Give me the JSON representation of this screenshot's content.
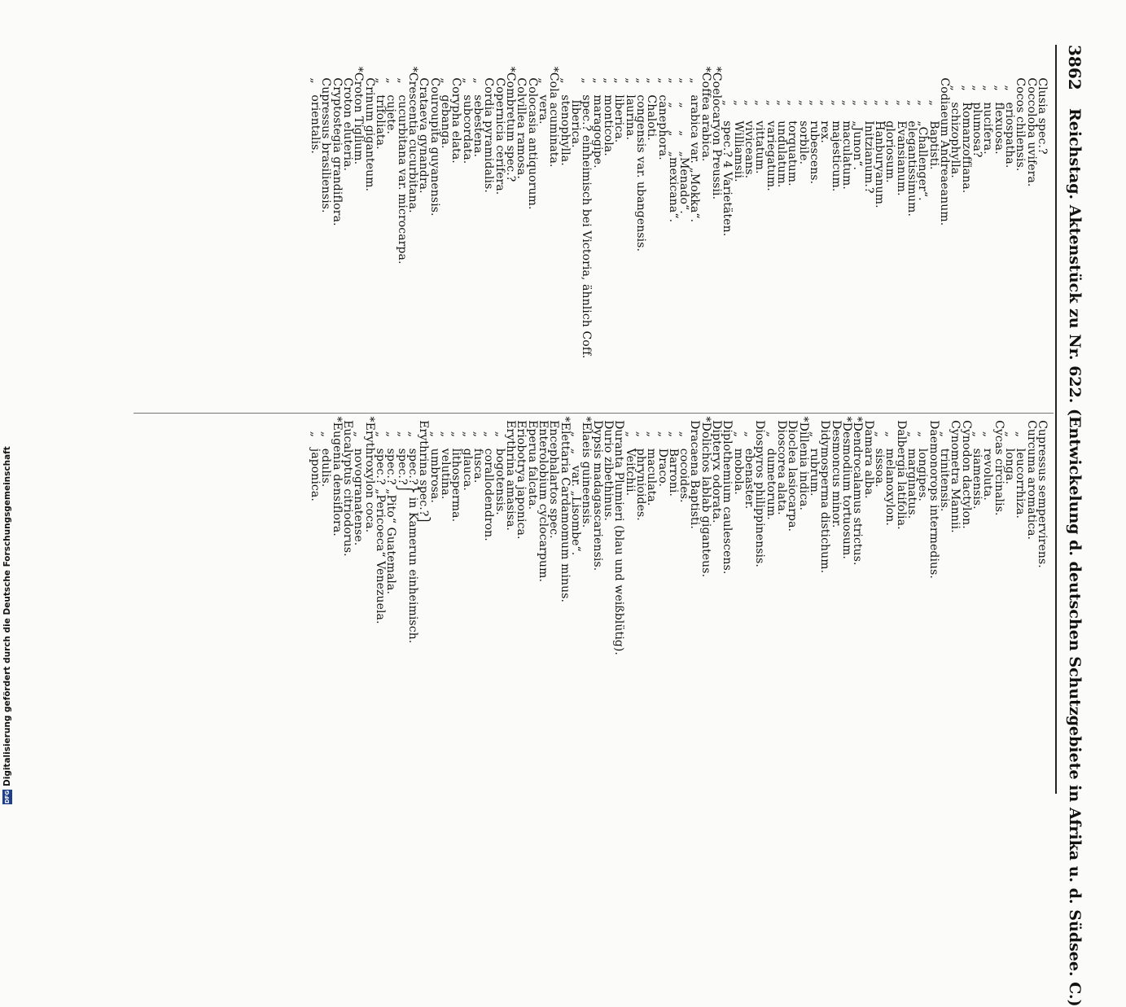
{
  "header": {
    "page_number": "3862",
    "title": "Reichstag. Aktenstück zu Nr. 622. (Entwickelung d. deutschen Schutzgebiete in Afrika u. d. Südsee. C.)"
  },
  "side_credit": {
    "logo_text": "DFG",
    "text": "Digitalisierung gefördert durch die Deutsche Forschungsgemeinschaft"
  },
  "left_column": [
    "        Clusia spec.?",
    "        Coccoloba uvifera.",
    "        Cocos chilensis.",
    "          „   eriospatha.",
    "          „   flexuosa.",
    "          „   nucifera.",
    "          „   plumosa?",
    "          „   Romanzoffiana.",
    "          „   schizophylla.",
    "        Codiaeum Andreaeanum.",
    "              „    Baptisti.",
    "              „    „Challenger“.",
    "              „    elegantissimum.",
    "              „    Evansianum.",
    "              „    gloriosum.",
    "              „    Hanburyanum.",
    "              „    Initzianum.?",
    "              „    „Junon“.",
    "              „    maculatum.",
    "              „    majesticum.",
    "              „    rex.",
    "              „    rubescens.",
    "              „    sorbile.",
    "              „    torquatum.",
    "              „    undulatum.",
    "              „    variegatum.",
    "              „    vittatum.",
    "              „    viviceans.",
    "              „    Williamsii.",
    "              „    spec.? 4 Varietäten.",
    "     *Coelocaryon Preussii.",
    "     *Coffea arabica.",
    "        „   arabica var. „Mokka“.",
    "        „     „      „    „Menado“.",
    "        „     „      „    „mexicana“.",
    "        „   canephora.",
    "        „   Chaloti.",
    "        „   congensis var. ubangensis.",
    "        „   laurina.",
    "        „   liberica.",
    "        „   monticola.",
    "        „   maragogipe.",
    "        „   spec.? einheimisch bei Victoria, ähnlich Coff.",
    "              liberica.",
    "        „   stenophylla.",
    "     *Cola acuminata.",
    "        „   vera.",
    "        Colocasia antiquorum.",
    "        Colvillea ramosa.",
    "     *Combretum spec.?",
    "        Copernicia cerifera.",
    "        Cordia pyramidalis.",
    "        „   sebestena.",
    "        „   subcordata.",
    "        Corypha elata.",
    "        „   gebanga.",
    "        Couroupita guyanensis.",
    "        Crataeva gynandra.",
    "     *Crescentia cucurbitana.",
    "        „   cucurbitana var. microcarpa.",
    "        „   cujete.",
    "        „   trifoliata.",
    "        Crinum giganteum.",
    "     *Croton Tiglium.",
    "        Croton eluteria.",
    "        Cryptostegia grandiflora.",
    "        Cupressus brasiliensis.",
    "        „   orientalis."
  ],
  "right_column": [
    "  Cupressus sempervirens.",
    "  Curcuma aromatica.",
    "     „   leucorrhiza.",
    "     „   longa.",
    "  Cycas circinalis.",
    "     „   revoluta.",
    "     „   siamensis.",
    "  Cynodon dactylon.",
    "  Cynometra Mannii.",
    "     „   trinitensis.",
    "  Daemonorops intermedius.",
    "     „   longipes.",
    "     „   marginatus.",
    "  Dalbergia latifolia.",
    "     „   melanoxylon.",
    "     „   sissoa.",
    "  Damara alba.",
    " *Dendrocalamus strictus.",
    " *Desmodium tortuosum.",
    "  Desmoncus minor.",
    "  Didymosperma distichum.",
    "     „   rubrum.",
    " *Dillenia indica.",
    "  Dioclea lasiocarpa.",
    "  Dioscorea alata.",
    "     „   dumetorum.",
    "  Diospyros philippinensis.",
    "     „   ebenaster.",
    "     „   mobola.",
    "  Diplothemium caulescens.",
    "  Dipteryx odorata.",
    " *Dolichos lablab giganteus.",
    "  Dracaena Baptisti.",
    "     „   cocoides.",
    "     „   Barroni.",
    "     „   Draco.",
    "     „   maculata.",
    "     „   phrynioides.",
    "     „   Veitchii.",
    "  Duranta Plumieri (blau und weißblütig).",
    "  Durio zibethinus.",
    "  Dypsis madagascariensis.",
    " *Elaeis guineensis.",
    "     „   „   var. „Lisombe“.",
    " *Elettaria Cardamomum minus.",
    "  Encephalartos spec.",
    "  Enterolobium cyclocarpum.",
    "  Eperua falcata.",
    "  Eriobotrya japonica.",
    "  Erythrina amasisa.",
    "     „   bogotensis.",
    "     „   corallodendron.",
    "     „   fusca.",
    "     „   glauca.",
    "     „   lithosperma.",
    "     „   velutina.",
    "     „   umbrosa.",
    "  Erythrina spec.?⎫",
    "     „   spec.?⎬ in Kamerun einheimisch.",
    "     „   spec.?⎭",
    "     „   spec.? „Pito“ Guatemala.",
    "     „   spec.? „Pericoeca“ Venezuela.",
    " *Erythroxylon coca.",
    "     „   novogranatense.",
    "  Eucalyptus citriodorus.",
    " *Eugenia densiflora.",
    "     „   edulis.",
    "     „   japonica."
  ]
}
